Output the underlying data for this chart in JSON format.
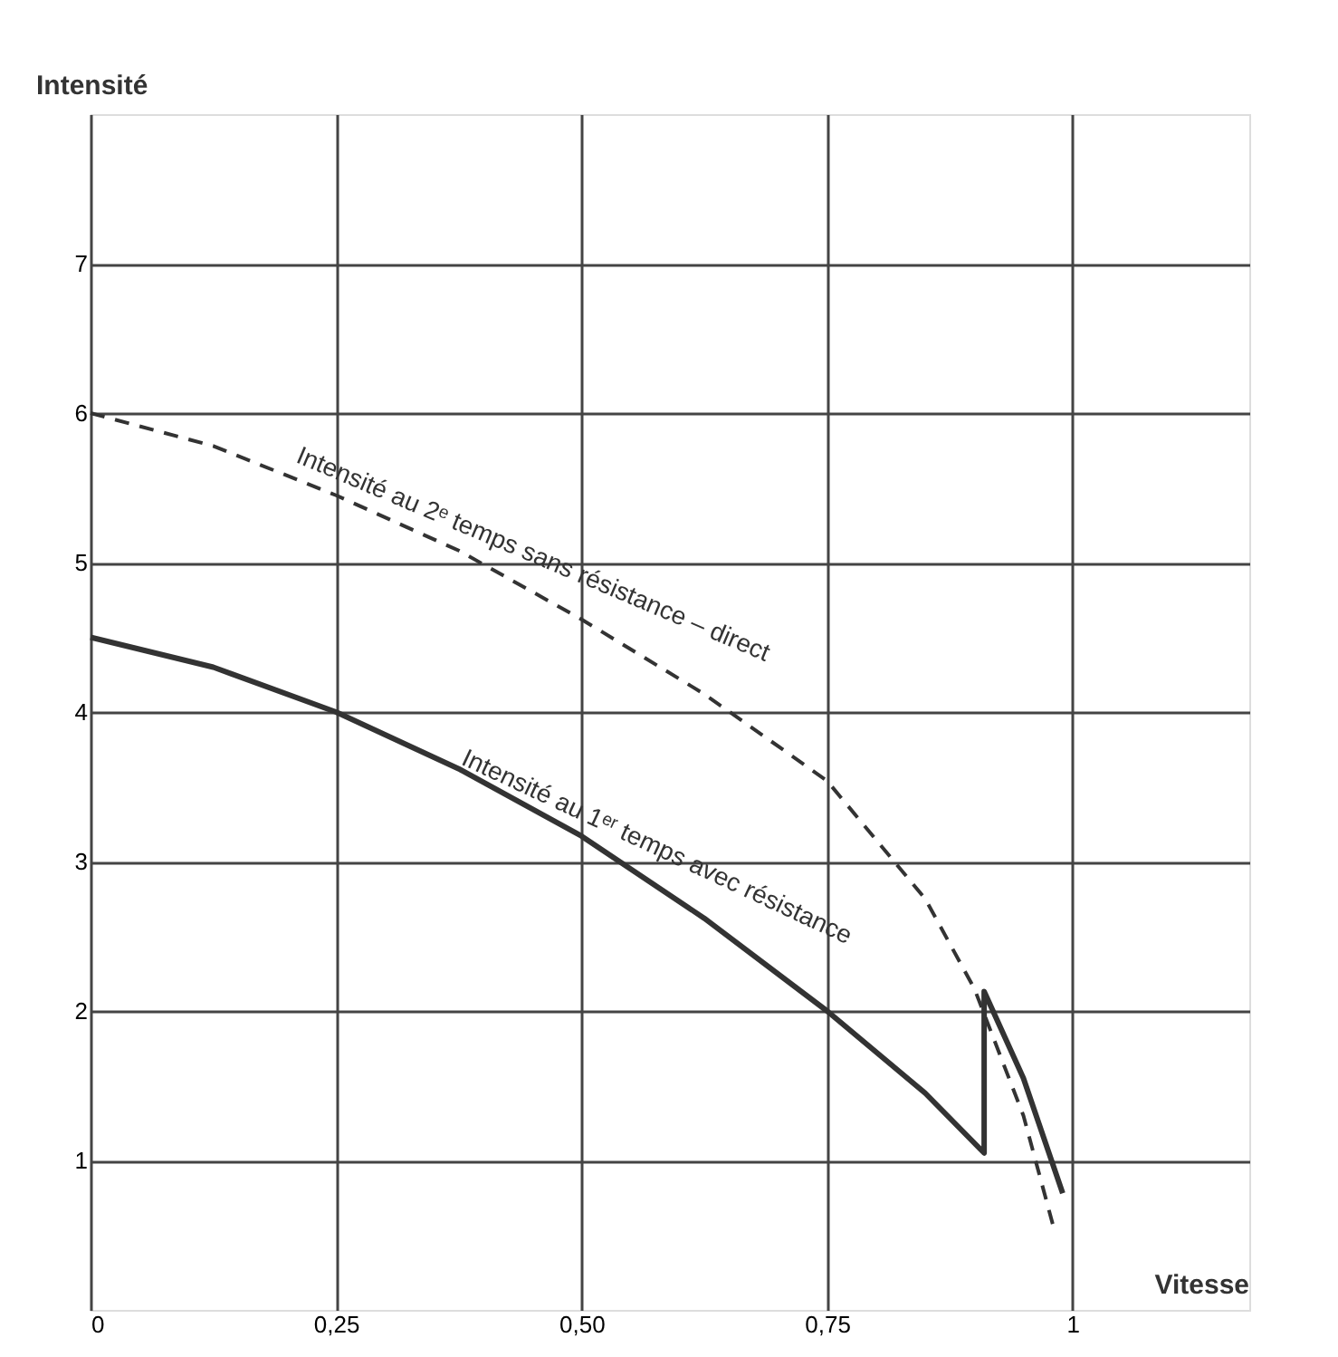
{
  "chart_data": {
    "type": "line",
    "xlabel": "Vitesse",
    "ylabel": "Intensité",
    "xlim": [
      0,
      1.18
    ],
    "ylim": [
      0,
      8
    ],
    "xticks": [
      0,
      {
        "value": 0.25,
        "label": "0,25"
      },
      {
        "value": 0.5,
        "label": "0,50"
      },
      {
        "value": 0.75,
        "label": "0,75"
      },
      1
    ],
    "yticks": [
      1,
      2,
      3,
      4,
      5,
      6,
      7
    ],
    "grid": true,
    "marker": "none",
    "series": [
      {
        "name": "Intensité au 2ᵉ temps sans résistance – direct",
        "color": "#333333",
        "line_style": "dashed",
        "x": [
          0,
          0.125,
          0.25,
          0.375,
          0.5,
          0.625,
          0.75,
          0.85,
          0.9,
          0.95,
          0.98
        ],
        "values": [
          6,
          5.78,
          5.45,
          5.08,
          4.62,
          4.12,
          3.54,
          2.75,
          2.15,
          1.3,
          0.57
        ]
      },
      {
        "name": "Intensité au 1ᵉʳ temps avec résistance",
        "color": "#333333",
        "line_style": "solid",
        "x": [
          0,
          0.125,
          0.25,
          0.375,
          0.5,
          0.625,
          0.75,
          0.85,
          0.91,
          0.91,
          0.95,
          0.99
        ],
        "values": [
          4.5,
          4.3,
          4.0,
          3.62,
          3.17,
          2.62,
          2.0,
          1.45,
          1.05,
          2.13,
          1.55,
          0.78
        ]
      }
    ]
  }
}
